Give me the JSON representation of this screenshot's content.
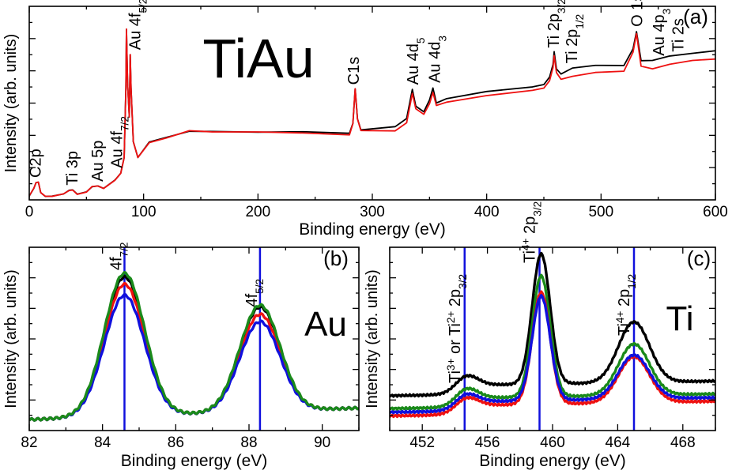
{
  "chart_data": [
    {
      "id": "a",
      "type": "line",
      "panel_label": "(a)",
      "title": "TiAu",
      "xlabel": "Binding energy (eV)",
      "ylabel": "Intensity (arb. units)",
      "xlim": [
        0,
        600
      ],
      "ylim": [
        0,
        100
      ],
      "xticks": [
        0,
        100,
        200,
        300,
        400,
        500,
        600
      ],
      "x_minor_step": 50,
      "y_ticks_labeled": false,
      "grid": false,
      "series": [
        {
          "color": "#000000",
          "points": [
            [
              0,
              2
            ],
            [
              4,
              6
            ],
            [
              6,
              9
            ],
            [
              8,
              9
            ],
            [
              10,
              4
            ],
            [
              14,
              2
            ],
            [
              20,
              2
            ],
            [
              30,
              3
            ],
            [
              35,
              5
            ],
            [
              38,
              5
            ],
            [
              42,
              3
            ],
            [
              50,
              4
            ],
            [
              55,
              7
            ],
            [
              60,
              7
            ],
            [
              65,
              6
            ],
            [
              75,
              10
            ],
            [
              80,
              14
            ],
            [
              83,
              22
            ],
            [
              84.5,
              58
            ],
            [
              85,
              88
            ],
            [
              86,
              60
            ],
            [
              87.5,
              43
            ],
            [
              88.3,
              75
            ],
            [
              89,
              58
            ],
            [
              91,
              30
            ],
            [
              95,
              22
            ],
            [
              105,
              30
            ],
            [
              120,
              32
            ],
            [
              140,
              36
            ],
            [
              160,
              35
            ],
            [
              200,
              35
            ],
            [
              240,
              35
            ],
            [
              280,
              35
            ],
            [
              283,
              40
            ],
            [
              285,
              57
            ],
            [
              287,
              42
            ],
            [
              290,
              36
            ],
            [
              320,
              38
            ],
            [
              330,
              42
            ],
            [
              335,
              57
            ],
            [
              338,
              48
            ],
            [
              345,
              45
            ],
            [
              350,
              52
            ],
            [
              353,
              58
            ],
            [
              356,
              50
            ],
            [
              365,
              53
            ],
            [
              400,
              56
            ],
            [
              440,
              58
            ],
            [
              450,
              60
            ],
            [
              455,
              63
            ],
            [
              458,
              70
            ],
            [
              459,
              76
            ],
            [
              461,
              68
            ],
            [
              465,
              65
            ],
            [
              475,
              68
            ],
            [
              495,
              70
            ],
            [
              520,
              70
            ],
            [
              528,
              78
            ],
            [
              531,
              87
            ],
            [
              535,
              72
            ],
            [
              545,
              72
            ],
            [
              560,
              74
            ],
            [
              580,
              76
            ],
            [
              600,
              77
            ]
          ]
        },
        {
          "color": "#ee1111",
          "points": [
            [
              0,
              2
            ],
            [
              4,
              6
            ],
            [
              6,
              9
            ],
            [
              8,
              9
            ],
            [
              10,
              4
            ],
            [
              14,
              2
            ],
            [
              20,
              2
            ],
            [
              30,
              3
            ],
            [
              35,
              5
            ],
            [
              38,
              5
            ],
            [
              42,
              3
            ],
            [
              50,
              4
            ],
            [
              55,
              7
            ],
            [
              60,
              7
            ],
            [
              65,
              6
            ],
            [
              75,
              10
            ],
            [
              80,
              14
            ],
            [
              83,
              22
            ],
            [
              84.5,
              58
            ],
            [
              85,
              88
            ],
            [
              86,
              60
            ],
            [
              87.5,
              43
            ],
            [
              88.3,
              75
            ],
            [
              89,
              58
            ],
            [
              91,
              30
            ],
            [
              95,
              22
            ],
            [
              105,
              30
            ],
            [
              120,
              32
            ],
            [
              140,
              36
            ],
            [
              160,
              35
            ],
            [
              200,
              35
            ],
            [
              240,
              34
            ],
            [
              280,
              34
            ],
            [
              283,
              40
            ],
            [
              285,
              57
            ],
            [
              287,
              42
            ],
            [
              290,
              36
            ],
            [
              320,
              36
            ],
            [
              330,
              40
            ],
            [
              335,
              55
            ],
            [
              338,
              47
            ],
            [
              345,
              44
            ],
            [
              350,
              50
            ],
            [
              353,
              56
            ],
            [
              356,
              49
            ],
            [
              365,
              51
            ],
            [
              400,
              54
            ],
            [
              440,
              56
            ],
            [
              450,
              58
            ],
            [
              455,
              61
            ],
            [
              458,
              68
            ],
            [
              459,
              74
            ],
            [
              461,
              66
            ],
            [
              465,
              62
            ],
            [
              475,
              64
            ],
            [
              495,
              66
            ],
            [
              520,
              67
            ],
            [
              528,
              76
            ],
            [
              531,
              86
            ],
            [
              535,
              69
            ],
            [
              545,
              68
            ],
            [
              560,
              70
            ],
            [
              580,
              72
            ],
            [
              600,
              73
            ]
          ]
        }
      ],
      "peak_labels": [
        {
          "x": 6,
          "lines": [
            [
              "C2p",
              ""
            ]
          ]
        },
        {
          "x": 38,
          "lines": [
            [
              "Ti 3p",
              ""
            ]
          ]
        },
        {
          "x": 60,
          "lines": [
            [
              "Au 5p",
              ""
            ]
          ]
        },
        {
          "x": 77,
          "lines": [
            [
              "Au 4f",
              "7/2"
            ]
          ]
        },
        {
          "x": 93,
          "lines": [
            [
              "Au 4f",
              "5/2"
            ]
          ]
        },
        {
          "x": 284,
          "lines": [
            [
              "C1s",
              ""
            ]
          ]
        },
        {
          "x": 336,
          "lines": [
            [
              "Au 4d",
              "5"
            ]
          ]
        },
        {
          "x": 355,
          "lines": [
            [
              "Au 4d",
              "3"
            ]
          ]
        },
        {
          "x": 459,
          "lines": [
            [
              "Ti 2p",
              "3/2"
            ]
          ]
        },
        {
          "x": 475,
          "lines": [
            [
              "Ti 2p",
              "1/2"
            ]
          ]
        },
        {
          "x": 532,
          "lines": [
            [
              "O 1s",
              ""
            ]
          ]
        },
        {
          "x": 551,
          "lines": [
            [
              "Au 4p",
              "3"
            ]
          ]
        },
        {
          "x": 568,
          "lines": [
            [
              "Ti 2s",
              ""
            ]
          ]
        }
      ]
    },
    {
      "id": "b",
      "type": "line",
      "panel_label": "(b)",
      "title": "Au",
      "xlabel": "Binding energy (eV)",
      "ylabel": "Intensity (arb. units)",
      "xlim": [
        82,
        91
      ],
      "ylim": [
        0,
        100
      ],
      "xticks": [
        82,
        84,
        86,
        88,
        90
      ],
      "x_minor_step": 1,
      "y_ticks_labeled": false,
      "grid": false,
      "vlines": [
        84.6,
        88.3
      ],
      "vline_color": "#1010dd",
      "series": [
        {
          "color": "#000000",
          "peaks": [
            [
              84.6,
              82
            ],
            [
              88.3,
              63
            ]
          ]
        },
        {
          "color": "#ee1111",
          "peaks": [
            [
              84.6,
              78
            ],
            [
              88.3,
              59
            ]
          ]
        },
        {
          "color": "#1010dd",
          "peaks": [
            [
              84.6,
              72
            ],
            [
              88.3,
              55
            ]
          ]
        },
        {
          "color": "#1a8a1a",
          "peaks": [
            [
              84.6,
              84
            ],
            [
              88.3,
              64
            ]
          ]
        }
      ],
      "peak_labels": [
        {
          "x": 84.6,
          "lines": [
            [
              "4f",
              "7/2"
            ]
          ]
        },
        {
          "x": 88.3,
          "lines": [
            [
              "4f",
              "5/2"
            ]
          ]
        }
      ]
    },
    {
      "id": "c",
      "type": "line",
      "panel_label": "(c)",
      "title": "Ti",
      "xlabel": "Binding energy (eV)",
      "ylabel": "Intensity (arb. units)",
      "xlim": [
        450,
        470
      ],
      "ylim": [
        0,
        100
      ],
      "xticks": [
        452,
        456,
        460,
        464,
        468
      ],
      "x_minor_step": 2,
      "y_ticks_labeled": false,
      "grid": false,
      "vlines": [
        454.6,
        459.2,
        465.0
      ],
      "vline_color": "#1010dd",
      "series": [
        {
          "color": "#000000",
          "offset": 11,
          "peaks": [
            [
              454.7,
              11
            ],
            [
              459.3,
              76
            ],
            [
              465.0,
              38
            ]
          ]
        },
        {
          "color": "#1a8a1a",
          "offset": 4,
          "peaks": [
            [
              454.7,
              11
            ],
            [
              459.3,
              71
            ],
            [
              465.0,
              33
            ]
          ]
        },
        {
          "color": "#ee1111",
          "offset": 0,
          "peaks": [
            [
              454.7,
              10
            ],
            [
              459.3,
              66
            ],
            [
              465.0,
              30
            ]
          ]
        },
        {
          "color": "#1010dd",
          "offset": 2,
          "peaks": [
            [
              454.7,
              10
            ],
            [
              459.3,
              62
            ],
            [
              465.0,
              29
            ]
          ]
        }
      ],
      "peak_labels": [
        {
          "x": 454.6,
          "lines": [
            [
              "Ti",
              "3+"
            ],
            [
              " or Ti",
              "2+"
            ],
            [
              " 2p",
              "3/2"
            ]
          ]
        },
        {
          "x": 459.2,
          "lines": [
            [
              "Ti",
              "4+"
            ],
            [
              " 2p",
              "3/2"
            ]
          ]
        },
        {
          "x": 465.0,
          "lines": [
            [
              "Ti",
              "4+"
            ],
            [
              " 2p",
              "1/2"
            ]
          ]
        }
      ]
    }
  ]
}
